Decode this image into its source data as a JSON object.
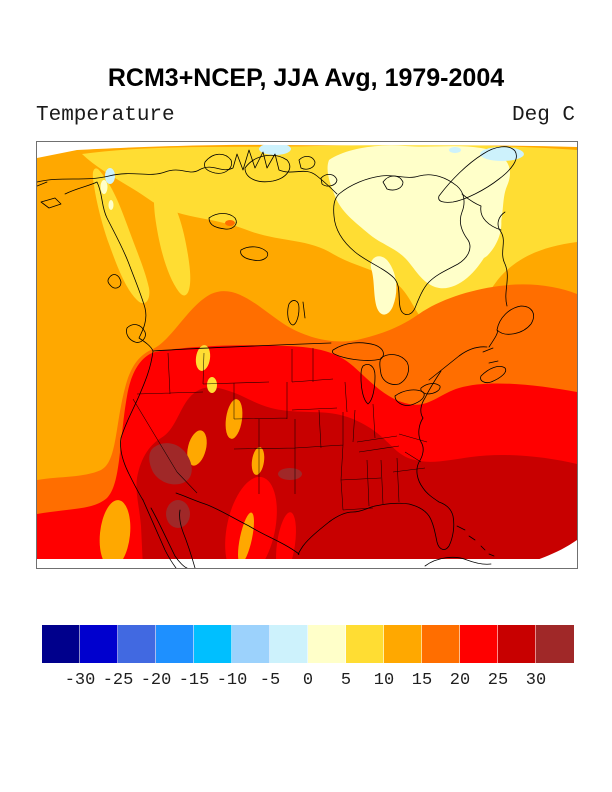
{
  "header": {
    "title": "RCM3+NCEP, JJA Avg, 1979-2004",
    "subtitle_left": "Temperature",
    "subtitle_right": "Deg C"
  },
  "chart_data": {
    "type": "heatmap",
    "title": "RCM3+NCEP, JJA Avg, 1979-2004",
    "variable": "Temperature",
    "units": "Deg C",
    "model": "RCM3+NCEP",
    "season": "JJA",
    "period": "1979-2004",
    "region": "North America (Lambert conformal map with national and state borders)",
    "legend_position": "horizontal colorbar at bottom",
    "contour_levels": [
      -30,
      -25,
      -20,
      -15,
      -10,
      -5,
      0,
      5,
      10,
      15,
      20,
      25,
      30
    ],
    "palette_colors": [
      "#00008C",
      "#0000CE",
      "#4169E1",
      "#1E90FF",
      "#00BFFF",
      "#9CD2FC",
      "#CDF2FC",
      "#FFFFC9",
      "#FFDD33",
      "#FFA800",
      "#FF6E00",
      "#FF0000",
      "#C80000",
      "#A02828"
    ],
    "bin_labels": [
      "< -30",
      "-30 to -25",
      "-25 to -20",
      "-20 to -15",
      "-15 to -10",
      "-10 to -5",
      "-5 to 0",
      "0 to 5",
      "5 to 10",
      "10 to 15",
      "15 to 20",
      "20 to 25",
      "25 to 30",
      "> 30"
    ],
    "features": [
      {
        "location": "Canadian Arctic archipelago and Hudson Bay",
        "approx_value_deg_c": "0 to 5"
      },
      {
        "location": "Small Arctic lakes / Baffin area spots",
        "approx_value_deg_c": "-5 to 0"
      },
      {
        "location": "Boreal Canada, Labrador, Alaska panhandle mountains",
        "approx_value_deg_c": "5 to 10"
      },
      {
        "location": "North Pacific, British Columbia, central Canada",
        "approx_value_deg_c": "10 to 15"
      },
      {
        "location": "Southern Canada prairies, Great Lakes north shore, New England, North Atlantic band",
        "approx_value_deg_c": "15 to 20"
      },
      {
        "location": "Northern/central United States, mid-Atlantic ocean band",
        "approx_value_deg_c": "20 to 25"
      },
      {
        "location": "Southern United States, Gulf of Mexico, Mexico, subtropical Atlantic",
        "approx_value_deg_c": "25 to 30"
      },
      {
        "location": "Desert Southwest (SE California / Arizona / NW Mexico patches)",
        "approx_value_deg_c": "> 30"
      },
      {
        "location": "Rocky Mountain high-elevation spots",
        "approx_value_deg_c": "5 to 15 (cool anomalies)"
      }
    ]
  },
  "colorbar": {
    "cell_count": 14,
    "tick_labels": [
      "-30",
      "-25",
      "-20",
      "-15",
      "-10",
      "-5",
      "0",
      "5",
      "10",
      "15",
      "20",
      "25",
      "30"
    ]
  }
}
